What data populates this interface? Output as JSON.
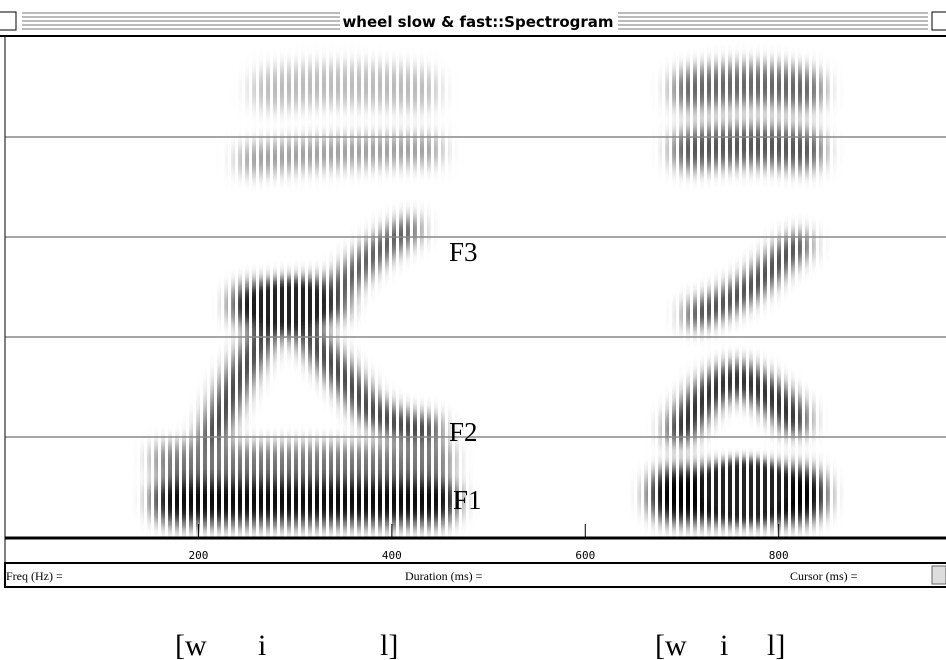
{
  "window": {
    "title": "wheel slow & fast::Spectrogram"
  },
  "spectrogram": {
    "formant_labels": [
      "F3",
      "F2",
      "F1"
    ]
  },
  "time_axis": {
    "xlim": [
      0,
      973
    ],
    "xticks": [
      200,
      400,
      600,
      800
    ]
  },
  "status_bar": {
    "fields": [
      "Freq (Hz) =",
      "Duration (ms) =",
      "Cursor (ms) ="
    ]
  },
  "transcription": [
    {
      "segments": [
        "[w",
        "i",
        "l]"
      ]
    },
    {
      "segments": [
        "[w",
        "i",
        "l]"
      ]
    }
  ]
}
